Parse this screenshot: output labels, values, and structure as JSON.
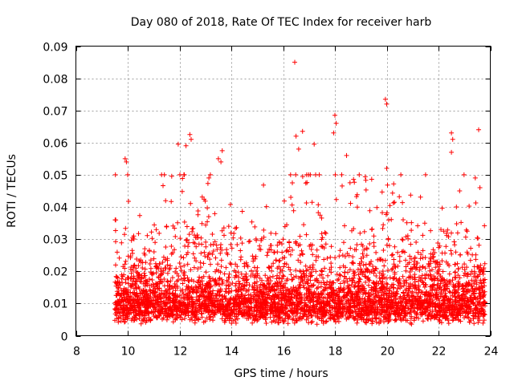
{
  "chart_data": {
    "type": "scatter",
    "title": "Day 080 of 2018, Rate Of TEC Index for receiver harb",
    "xlabel": "GPS time / hours",
    "ylabel": "ROTI / TECUs",
    "xlim": [
      8,
      24
    ],
    "ylim": [
      0,
      0.09
    ],
    "xticks": [
      8,
      10,
      12,
      14,
      16,
      18,
      20,
      22,
      24
    ],
    "xtick_labels": [
      "8",
      "10",
      "12",
      "14",
      "16",
      "18",
      "20",
      "22",
      "24"
    ],
    "yticks": [
      0,
      0.01,
      0.02,
      0.03,
      0.04,
      0.05,
      0.06,
      0.07,
      0.08,
      0.09
    ],
    "ytick_labels": [
      "0",
      "0.01",
      "0.02",
      "0.03",
      "0.04",
      "0.05",
      "0.06",
      "0.07",
      "0.08",
      "0.09"
    ],
    "grid": true,
    "marker": "+",
    "marker_color": "#ff0000",
    "series": [
      {
        "name": "ROTI",
        "x_range": [
          9.5,
          23.8
        ],
        "note": "dense cloud of thousands of points; core 0.005-0.025 TECU/s; peaks listed below",
        "peaks": [
          {
            "x": 9.9,
            "y": 0.055
          },
          {
            "x": 9.95,
            "y": 0.054
          },
          {
            "x": 10.0,
            "y": 0.05
          },
          {
            "x": 11.95,
            "y": 0.0595
          },
          {
            "x": 12.25,
            "y": 0.059
          },
          {
            "x": 12.4,
            "y": 0.0625
          },
          {
            "x": 12.45,
            "y": 0.061
          },
          {
            "x": 13.5,
            "y": 0.055
          },
          {
            "x": 13.6,
            "y": 0.054
          },
          {
            "x": 13.65,
            "y": 0.0575
          },
          {
            "x": 16.45,
            "y": 0.085
          },
          {
            "x": 16.5,
            "y": 0.062
          },
          {
            "x": 16.75,
            "y": 0.0635
          },
          {
            "x": 16.6,
            "y": 0.058
          },
          {
            "x": 17.2,
            "y": 0.0595
          },
          {
            "x": 17.95,
            "y": 0.063
          },
          {
            "x": 18.0,
            "y": 0.0685
          },
          {
            "x": 18.05,
            "y": 0.066
          },
          {
            "x": 18.45,
            "y": 0.056
          },
          {
            "x": 19.95,
            "y": 0.0735
          },
          {
            "x": 20.0,
            "y": 0.072
          },
          {
            "x": 20.0,
            "y": 0.052
          },
          {
            "x": 22.5,
            "y": 0.063
          },
          {
            "x": 22.55,
            "y": 0.061
          },
          {
            "x": 22.5,
            "y": 0.057
          },
          {
            "x": 23.55,
            "y": 0.064
          },
          {
            "x": 23.6,
            "y": 0.046
          }
        ]
      }
    ]
  }
}
